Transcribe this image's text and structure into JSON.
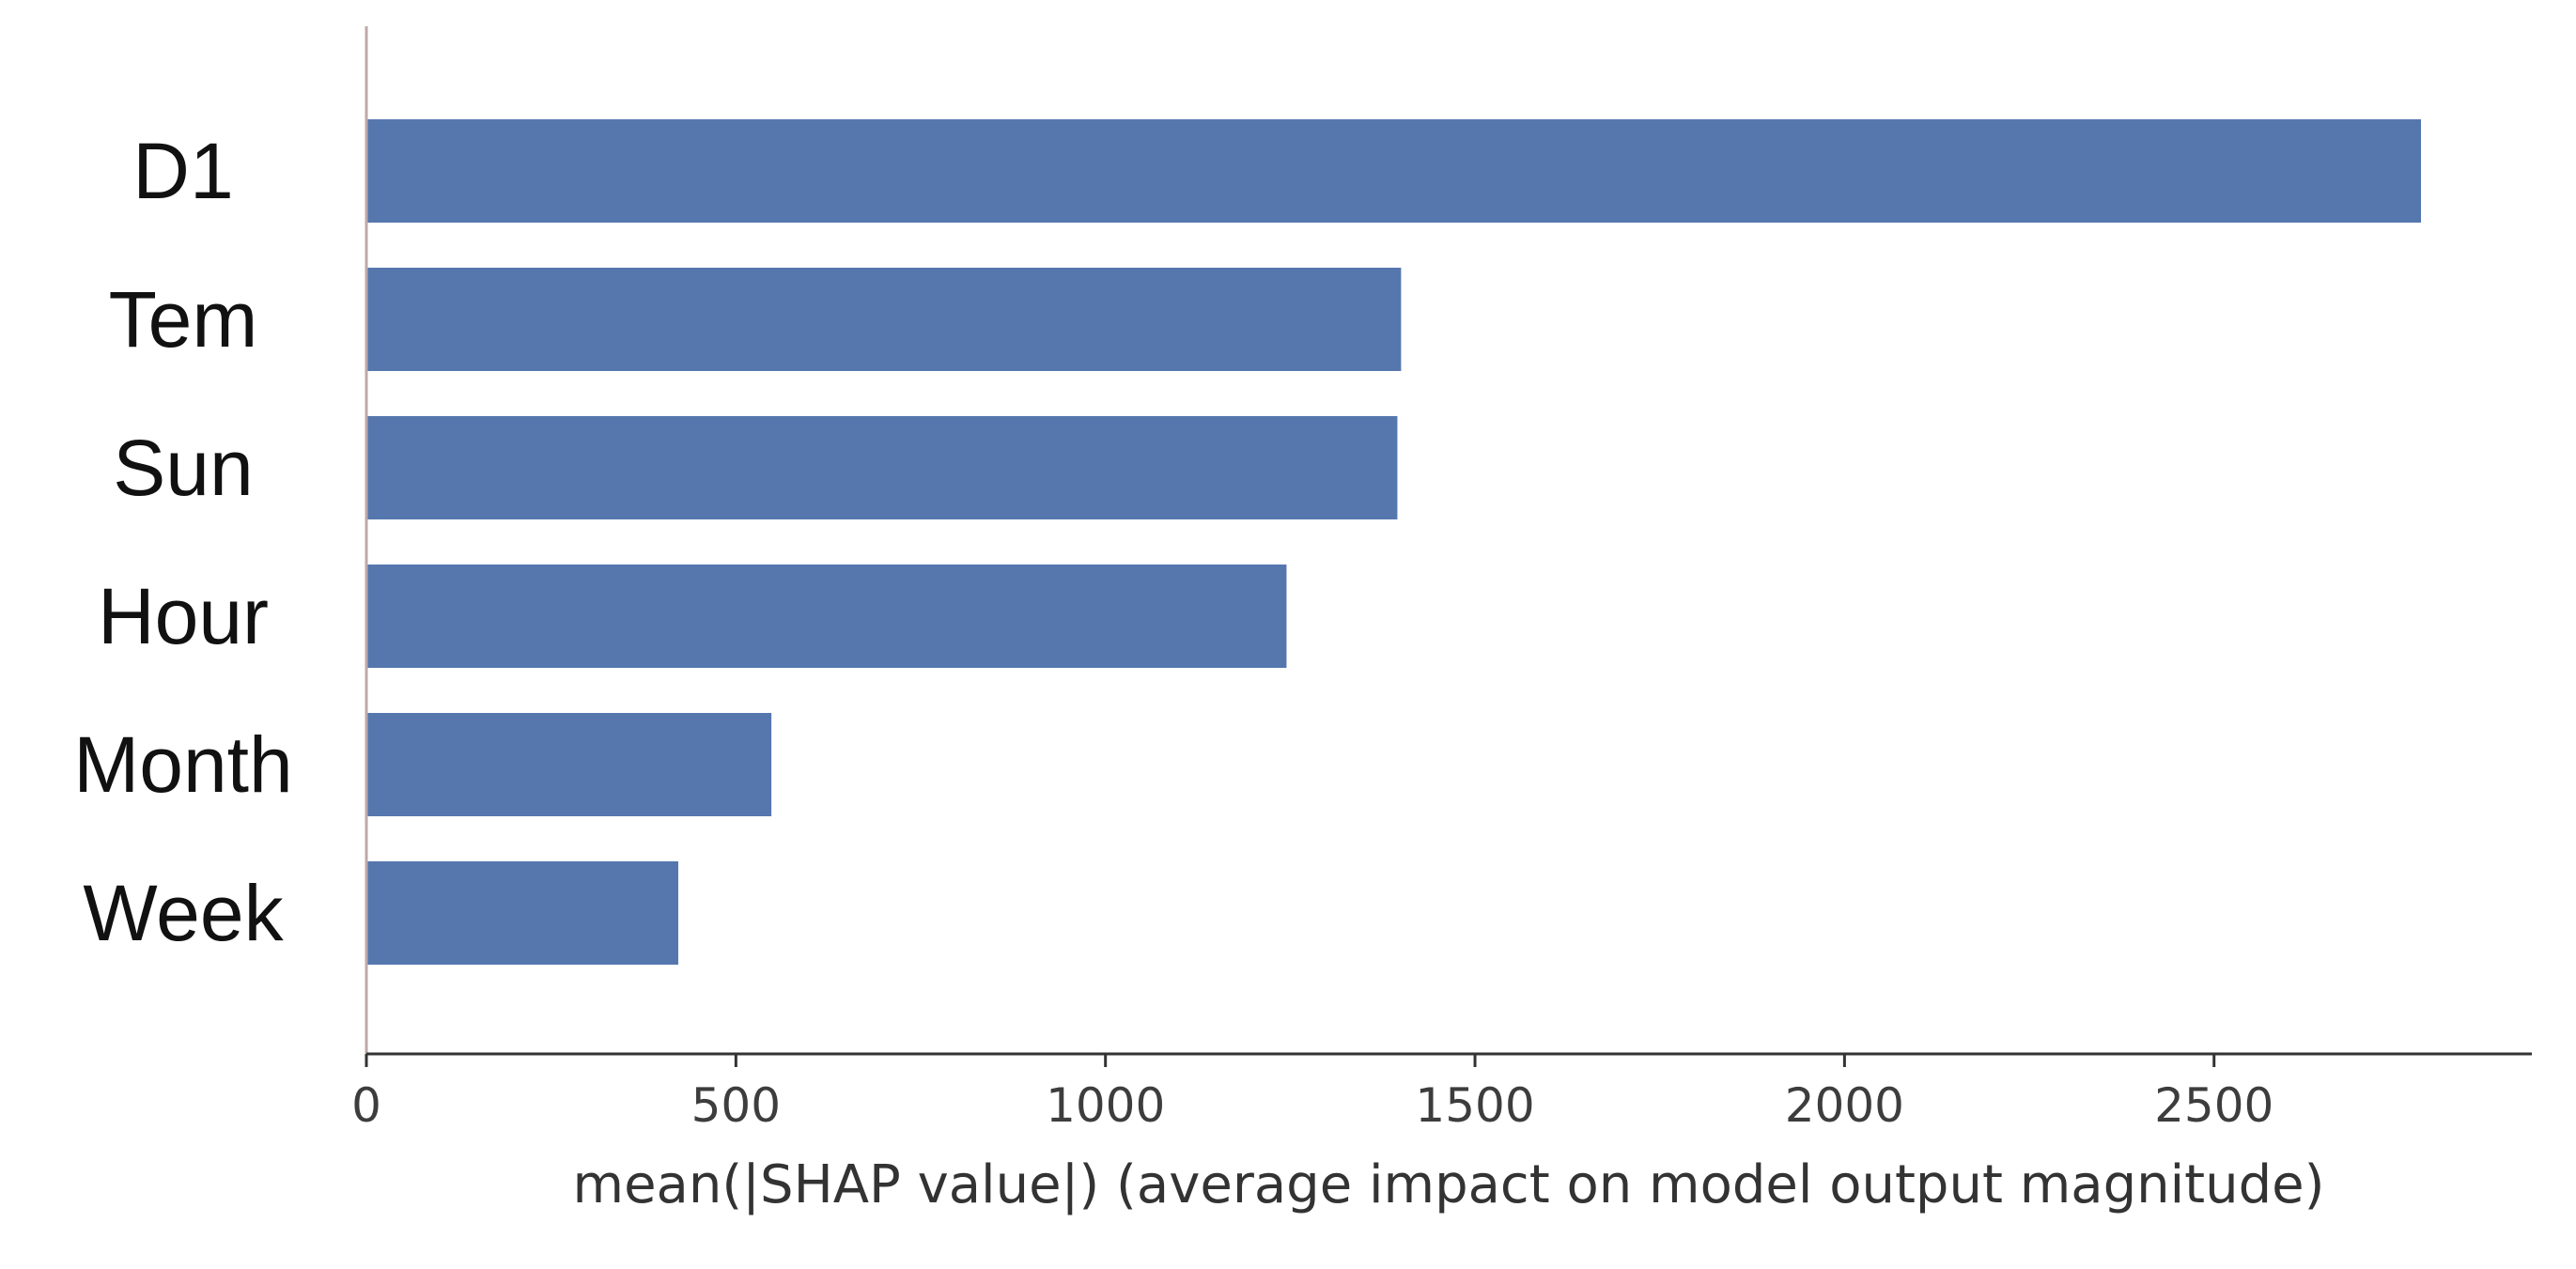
{
  "chart_data": {
    "type": "bar",
    "orientation": "horizontal",
    "categories": [
      "D1",
      "Tem",
      "Sun",
      "Hour",
      "Month",
      "Week"
    ],
    "values": [
      2780,
      1400,
      1395,
      1245,
      548,
      422
    ],
    "xlabel": "mean(|SHAP value|) (average impact on model output magnitude)",
    "ylabel": "",
    "xlim": [
      0,
      2930
    ],
    "xticks": [
      0,
      500,
      1000,
      1500,
      2000,
      2500
    ],
    "bar_color": "#5577ae",
    "grid": false,
    "legend": "none"
  }
}
